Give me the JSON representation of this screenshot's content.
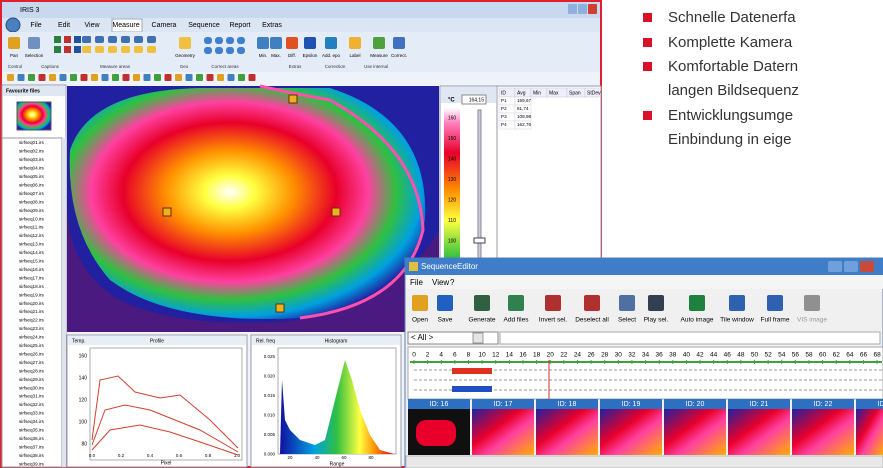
{
  "iris": {
    "title": "IRIS 3",
    "menu": [
      "File",
      "Edit",
      "View",
      "Measure",
      "Camera",
      "Sequence",
      "Report",
      "Extras"
    ],
    "ribbon_buttons": [
      "Pan",
      "Selection",
      "Geometry",
      "Min.",
      "Max.",
      "Diff.",
      "Epsilon",
      "Add. epo",
      "Label",
      "Measure",
      "Correct."
    ],
    "ribbon_groups": [
      "Control",
      "Captions",
      "Measure areas",
      "Geo",
      "Correct areas",
      "Extras",
      "Correction",
      "Use internal"
    ],
    "favourites": {
      "title": "Favourite files",
      "files": [
        "sirfseq01.irs",
        "sirfseq02.irs",
        "sirfseq03.irs",
        "sirfseq04.irs",
        "sirfseq05.irs",
        "sirfseq06.irs",
        "sirfseq07.irs",
        "sirfseq08.irs",
        "sirfseq09.irs",
        "sirfseq10.irs",
        "sirfseq11.irs",
        "sirfseq12.irs",
        "sirfseq13.irs",
        "sirfseq14.irs",
        "sirfseq15.irs",
        "sirfseq16.irs",
        "sirfseq17.irs",
        "sirfseq18.irs",
        "sirfseq19.irs",
        "sirfseq20.irs",
        "sirfseq21.irs",
        "sirfseq22.irs",
        "sirfseq23.irs",
        "sirfseq24.irs",
        "sirfseq25.irs",
        "sirfseq26.irs",
        "sirfseq27.irs",
        "sirfseq28.irs",
        "sirfseq29.irs",
        "sirfseq30.irs",
        "sirfseq31.irs",
        "sirfseq32.irs",
        "sirfseq33.irs",
        "sirfseq34.irs",
        "sirfseq35.irs",
        "sirfseq36.irs",
        "sirfseq37.irs",
        "sirfseq38.irs",
        "sirfseq39.irs"
      ]
    },
    "scale": {
      "unit": "°C",
      "current": "164,15",
      "labels": [
        "160",
        "150",
        "140",
        "130",
        "120",
        "110",
        "100"
      ]
    },
    "table": {
      "headers": [
        "ID",
        "Avg",
        "Min",
        "Max",
        "Span",
        "StDev"
      ],
      "rows": [
        [
          "P1",
          "159,67"
        ],
        [
          "P2",
          "81,74"
        ],
        [
          "P3",
          "109,98"
        ],
        [
          "P4",
          "162,76"
        ]
      ]
    },
    "profile": {
      "title": "Profile",
      "y_label": "Temp.",
      "x_label": "Pixel",
      "yticks": [
        "160",
        "140",
        "120",
        "100",
        "80"
      ],
      "xticks": [
        "0.0",
        "0.2",
        "0.4",
        "0.6",
        "0.8",
        "1.0"
      ]
    },
    "histogram": {
      "title": "Histogram",
      "y_label": "Rel. freq",
      "x_label": "Range",
      "yticks": [
        "0.025",
        "0.020",
        "0.015",
        "0.010",
        "0.005",
        "0.000"
      ],
      "xticks": [
        "20",
        "40",
        "60",
        "80"
      ]
    }
  },
  "features": {
    "items": [
      [
        "Schnelle Datenerfa"
      ],
      [
        "Komplette Kamera"
      ],
      [
        "Komfortable Datern",
        "langen Bildsequenz"
      ],
      [
        "Entwicklungsumge",
        "Einbindung in eige"
      ]
    ]
  },
  "sequence_editor": {
    "title": "SequenceEditor",
    "menu": [
      "File",
      "View",
      "?"
    ],
    "toolbar": [
      "Open",
      "Save",
      "Generate",
      "Add files",
      "Invert sel.",
      "Deselect all",
      "Select",
      "Play sel.",
      "Auto image",
      "Tile window",
      "Full frame",
      "VIS image"
    ],
    "filter": "< All >",
    "timeline": [
      "0",
      "2",
      "4",
      "6",
      "8",
      "10",
      "12",
      "14",
      "16",
      "18",
      "20",
      "22",
      "24",
      "26",
      "28",
      "30",
      "32",
      "34",
      "36",
      "38",
      "40",
      "42",
      "44",
      "46",
      "48",
      "50",
      "52",
      "54",
      "56",
      "58",
      "60",
      "62",
      "64",
      "66",
      "68"
    ],
    "frames": [
      "ID: 16",
      "ID: 17",
      "ID: 18",
      "ID: 19",
      "ID: 20",
      "ID: 21",
      "ID: 22",
      "ID: 23"
    ]
  }
}
